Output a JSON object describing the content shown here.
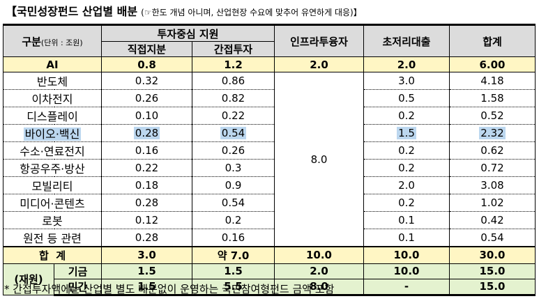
{
  "title": {
    "main": "【국민성장펀드 산업별 배분",
    "note": "(☞한도 개념 아니며, 산업현장 수요에 맞추어 유연하게 대응)】"
  },
  "header": {
    "category": "구분",
    "unit": "(단위 : 조원)",
    "investment_support": "투자중심 지원",
    "direct_equity": "직접지분",
    "indirect_investment": "간접투자",
    "infra_financing": "인프라투융자",
    "low_rate_loan": "초저리대출",
    "total": "합계"
  },
  "ai_row": {
    "label": "AI",
    "direct": "0.8",
    "indirect": "1.2",
    "infra": "2.0",
    "loan": "2.0",
    "total": "6.00"
  },
  "rows": [
    {
      "label": "반도체",
      "direct": "0.32",
      "indirect": "0.86",
      "loan": "3.0",
      "total": "4.18"
    },
    {
      "label": "이차전지",
      "direct": "0.26",
      "indirect": "0.82",
      "loan": "0.5",
      "total": "1.58"
    },
    {
      "label": "디스플레이",
      "direct": "0.10",
      "indirect": "0.22",
      "loan": "0.2",
      "total": "0.52"
    },
    {
      "label": "바이오·백신",
      "direct": "0.28",
      "indirect": "0.54",
      "loan": "1.5",
      "total": "2.32"
    },
    {
      "label": "수소·연료전지",
      "direct": "0.16",
      "indirect": "0.26",
      "loan": "0.2",
      "total": "0.62"
    },
    {
      "label": "항공우주·방산",
      "direct": "0.22",
      "indirect": "0.3",
      "loan": "0.2",
      "total": "0.72"
    },
    {
      "label": "모빌리티",
      "direct": "0.18",
      "indirect": "0.9",
      "loan": "2.0",
      "total": "3.08"
    },
    {
      "label": "미디어·콘텐츠",
      "direct": "0.28",
      "indirect": "0.54",
      "loan": "0.2",
      "total": "1.02"
    },
    {
      "label": "로봇",
      "direct": "0.12",
      "indirect": "0.2",
      "loan": "0.1",
      "total": "0.42"
    },
    {
      "label": "원전 등 관련",
      "direct": "0.28",
      "indirect": "0.16",
      "loan": "0.1",
      "total": "0.54"
    }
  ],
  "infra_merged": "8.0",
  "total_row": {
    "label": "합  계",
    "direct": "3.0",
    "indirect": "약 7.0",
    "infra": "10.0",
    "loan": "10.0",
    "total": "30.0"
  },
  "source": {
    "label": "(재원)",
    "fund": {
      "label": "기금",
      "direct": "1.5",
      "indirect": "1.5",
      "infra": "2.0",
      "loan": "10.0",
      "total": "15.0"
    },
    "private": {
      "label": "민간",
      "direct": "1.5",
      "indirect": "5.5",
      "infra": "8.0",
      "loan": "-",
      "total": "15.0"
    }
  },
  "footnote": "* 간접투자액에는 산업별 별도 배분없이 운영하는 국민참여형펀드 금액 포함",
  "colors": {
    "header_bg": "#dcdcdc",
    "ai_total_bg": "#fff6c4",
    "source_bg": "#e4f2cf",
    "highlight": "#bcd7ef"
  }
}
